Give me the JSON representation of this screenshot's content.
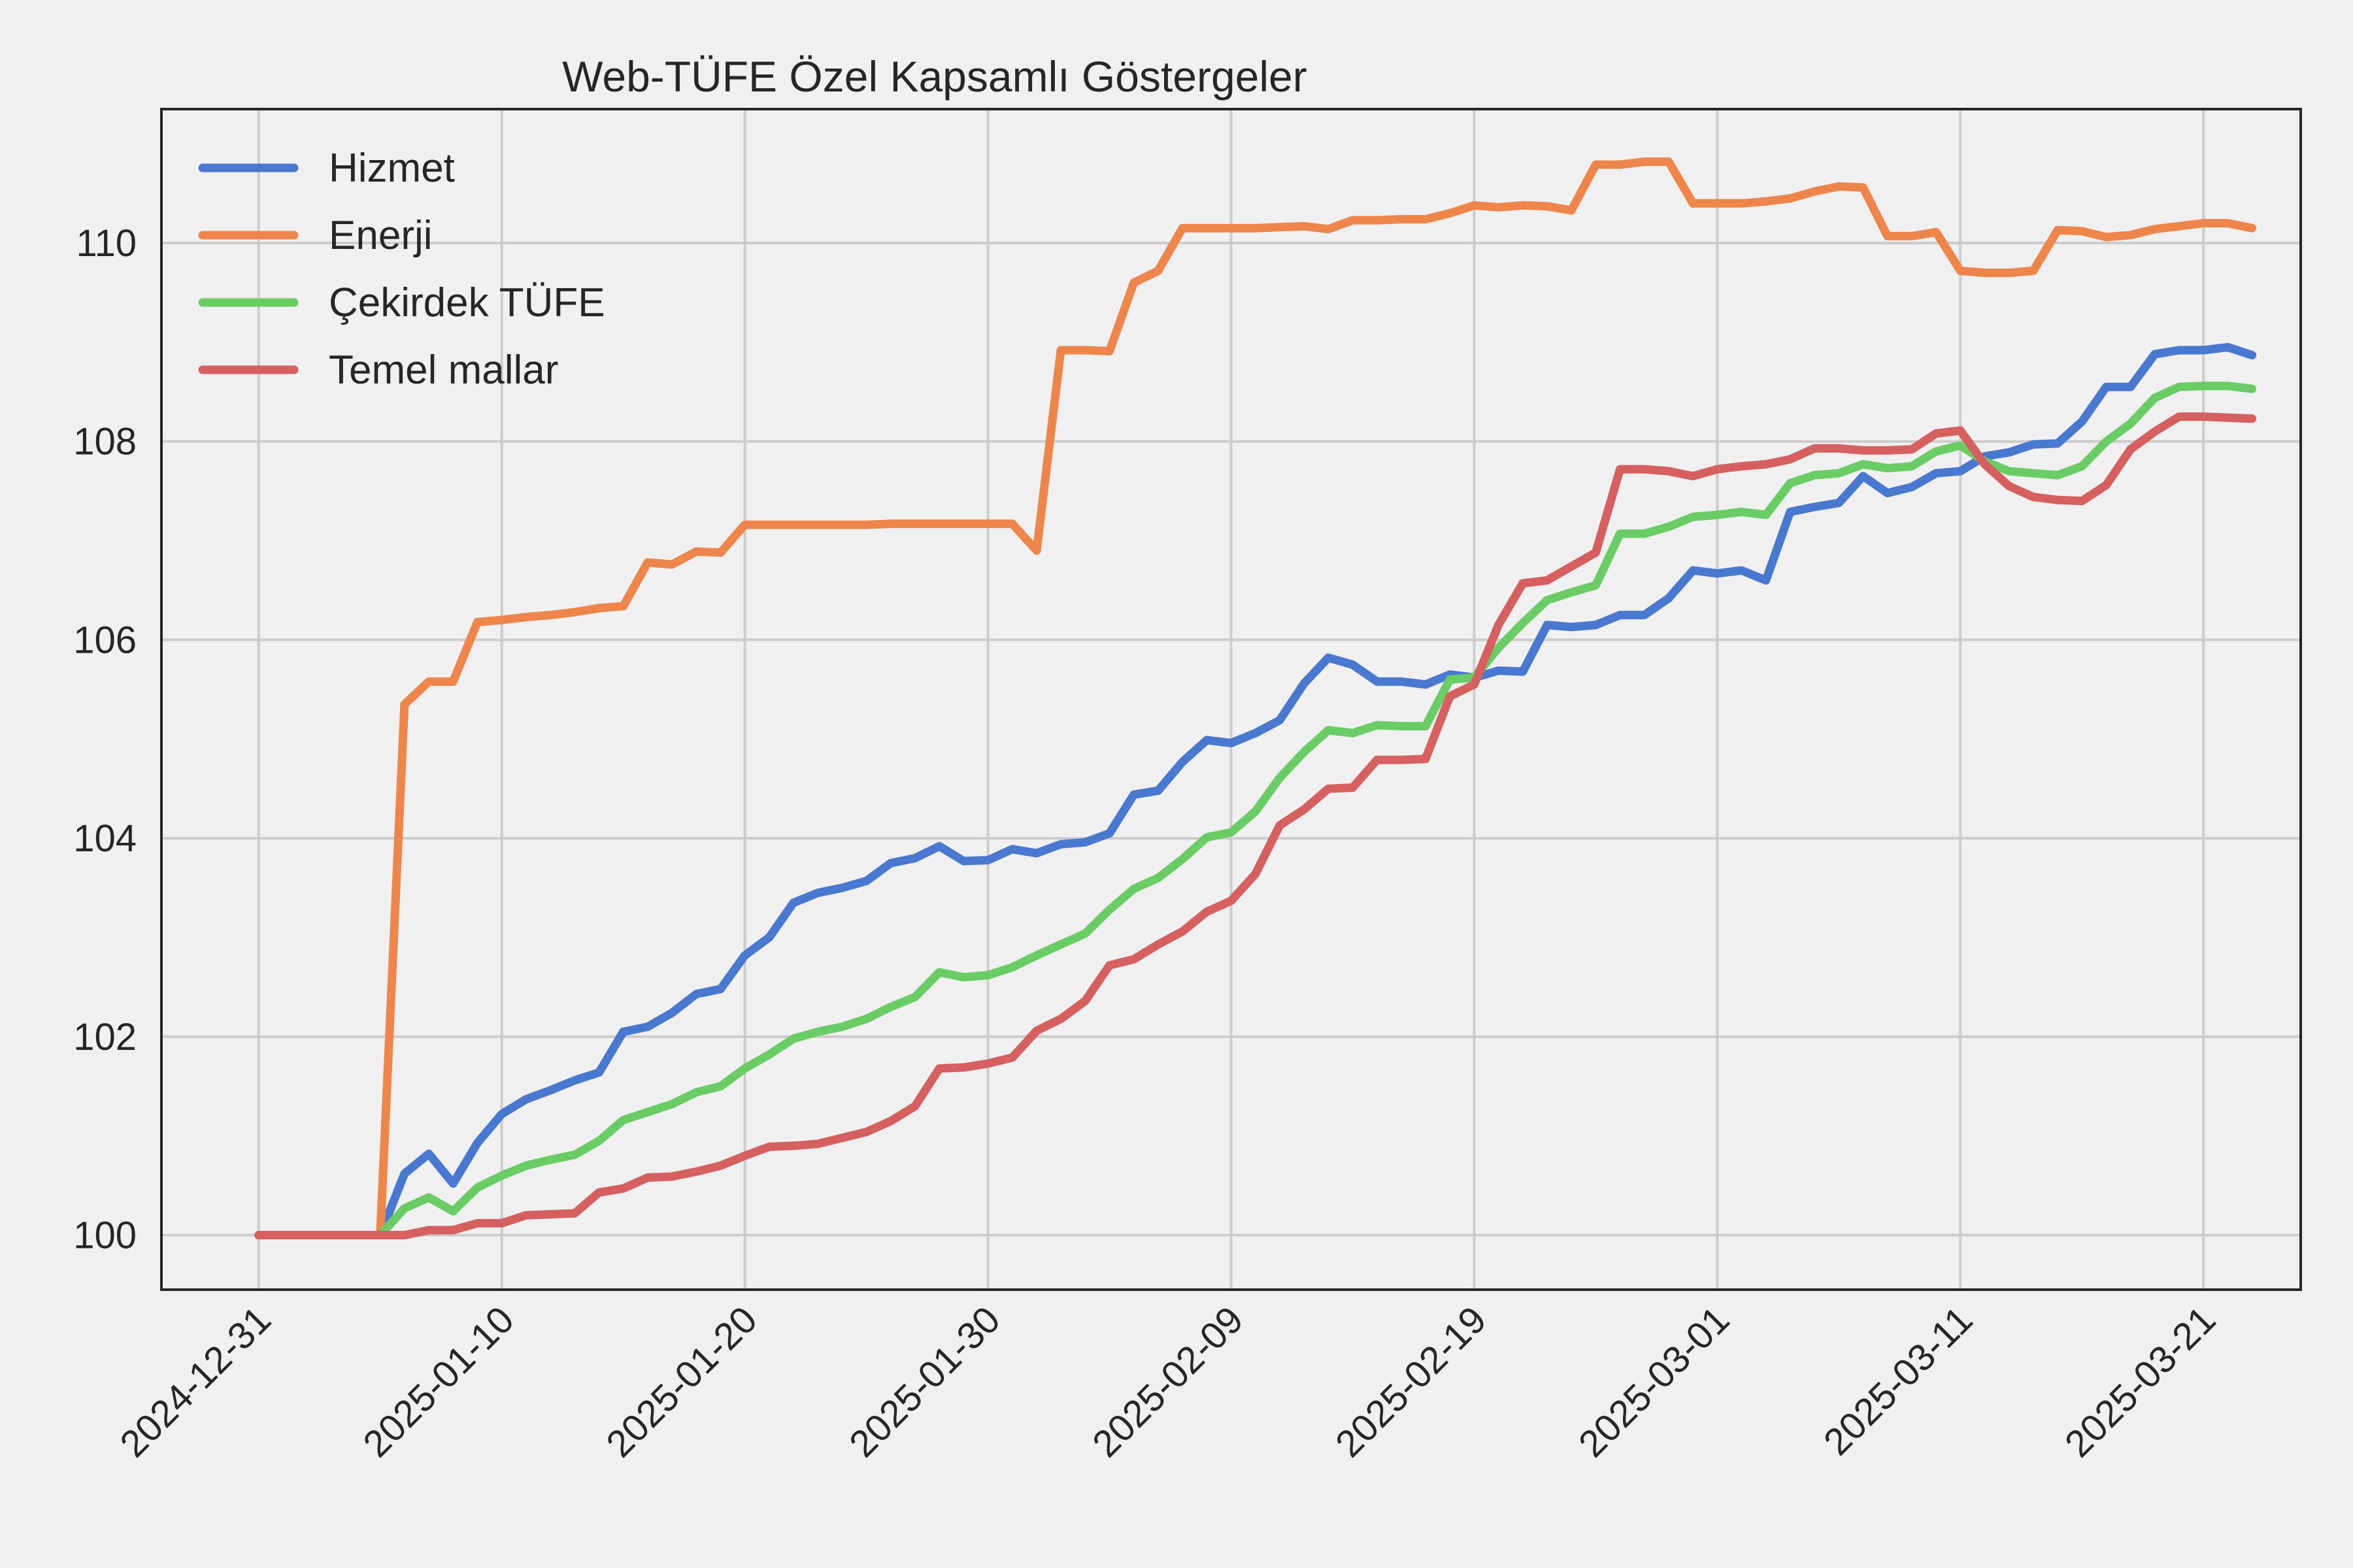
{
  "chart_data": {
    "type": "line",
    "title": "Web-TÜFE Özel Kapsamlı Göstergeler",
    "xlabel": "",
    "ylabel": "",
    "x_range": [
      "2024-12-27",
      "2025-03-25"
    ],
    "ylim": [
      99.45,
      111.35
    ],
    "grid": true,
    "legend_position": "top-left",
    "x_ticks": [
      "2024-12-31",
      "2025-01-10",
      "2025-01-20",
      "2025-01-30",
      "2025-02-09",
      "2025-02-19",
      "2025-03-01",
      "2025-03-11",
      "2025-03-21"
    ],
    "y_ticks": [
      "100",
      "102",
      "104",
      "106",
      "108",
      "110"
    ],
    "x": [
      "2024-12-31",
      "2025-01-01",
      "2025-01-02",
      "2025-01-03",
      "2025-01-04",
      "2025-01-05",
      "2025-01-06",
      "2025-01-07",
      "2025-01-08",
      "2025-01-09",
      "2025-01-10",
      "2025-01-11",
      "2025-01-12",
      "2025-01-13",
      "2025-01-14",
      "2025-01-15",
      "2025-01-16",
      "2025-01-17",
      "2025-01-18",
      "2025-01-19",
      "2025-01-20",
      "2025-01-21",
      "2025-01-22",
      "2025-01-23",
      "2025-01-24",
      "2025-01-25",
      "2025-01-26",
      "2025-01-27",
      "2025-01-28",
      "2025-01-29",
      "2025-01-30",
      "2025-01-31",
      "2025-02-01",
      "2025-02-02",
      "2025-02-03",
      "2025-02-04",
      "2025-02-05",
      "2025-02-06",
      "2025-02-07",
      "2025-02-08",
      "2025-02-09",
      "2025-02-10",
      "2025-02-11",
      "2025-02-12",
      "2025-02-13",
      "2025-02-14",
      "2025-02-15",
      "2025-02-16",
      "2025-02-17",
      "2025-02-18",
      "2025-02-19",
      "2025-02-20",
      "2025-02-21",
      "2025-02-22",
      "2025-02-23",
      "2025-02-24",
      "2025-02-25",
      "2025-02-26",
      "2025-02-27",
      "2025-02-28",
      "2025-03-01",
      "2025-03-02",
      "2025-03-03",
      "2025-03-04",
      "2025-03-05",
      "2025-03-06",
      "2025-03-07",
      "2025-03-08",
      "2025-03-09",
      "2025-03-10",
      "2025-03-11",
      "2025-03-12",
      "2025-03-13",
      "2025-03-14",
      "2025-03-15",
      "2025-03-16",
      "2025-03-17",
      "2025-03-18",
      "2025-03-19",
      "2025-03-20",
      "2025-03-21",
      "2025-03-22",
      "2025-03-23"
    ],
    "series": [
      {
        "name": "Hizmet",
        "color": "#4878d0",
        "values": [
          100.0,
          100.0,
          100.0,
          100.0,
          100.0,
          100.0,
          100.62,
          100.82,
          100.52,
          100.93,
          101.22,
          101.37,
          101.46,
          101.56,
          101.64,
          102.05,
          102.1,
          102.24,
          102.43,
          102.48,
          102.82,
          103.0,
          103.35,
          103.45,
          103.5,
          103.57,
          103.75,
          103.8,
          103.92,
          103.77,
          103.78,
          103.89,
          103.85,
          103.94,
          103.96,
          104.05,
          104.44,
          104.48,
          104.77,
          104.99,
          104.96,
          105.06,
          105.19,
          105.56,
          105.82,
          105.75,
          105.58,
          105.58,
          105.55,
          105.65,
          105.62,
          105.69,
          105.68,
          106.15,
          106.13,
          106.15,
          106.25,
          106.25,
          106.42,
          106.7,
          106.67,
          106.7,
          106.6,
          107.29,
          107.34,
          107.38,
          107.65,
          107.48,
          107.54,
          107.68,
          107.7,
          107.85,
          107.89,
          107.97,
          107.98,
          108.2,
          108.55,
          108.55,
          108.88,
          108.92,
          108.92,
          108.95,
          108.87
        ]
      },
      {
        "name": "Enerji",
        "color": "#ee854a",
        "values": [
          100.0,
          100.0,
          100.0,
          100.0,
          100.0,
          100.0,
          105.35,
          105.58,
          105.58,
          106.18,
          106.2,
          106.23,
          106.25,
          106.28,
          106.32,
          106.34,
          106.78,
          106.76,
          106.89,
          106.88,
          107.16,
          107.16,
          107.16,
          107.16,
          107.16,
          107.16,
          107.17,
          107.17,
          107.17,
          107.17,
          107.17,
          107.17,
          106.9,
          108.92,
          108.92,
          108.91,
          109.6,
          109.72,
          110.15,
          110.15,
          110.15,
          110.15,
          110.16,
          110.17,
          110.14,
          110.23,
          110.23,
          110.24,
          110.24,
          110.3,
          110.38,
          110.36,
          110.38,
          110.37,
          110.33,
          110.79,
          110.79,
          110.82,
          110.82,
          110.4,
          110.4,
          110.4,
          110.42,
          110.45,
          110.52,
          110.57,
          110.56,
          110.07,
          110.07,
          110.11,
          109.72,
          109.7,
          109.7,
          109.72,
          110.13,
          110.12,
          110.06,
          110.08,
          110.14,
          110.17,
          110.2,
          110.2,
          110.15
        ]
      },
      {
        "name": "Çekirdek TÜFE",
        "color": "#6acc64",
        "values": [
          100.0,
          100.0,
          100.0,
          100.0,
          100.0,
          100.0,
          100.27,
          100.38,
          100.24,
          100.48,
          100.6,
          100.7,
          100.76,
          100.81,
          100.95,
          101.16,
          101.24,
          101.32,
          101.44,
          101.5,
          101.68,
          101.82,
          101.98,
          102.05,
          102.1,
          102.18,
          102.3,
          102.4,
          102.65,
          102.6,
          102.62,
          102.7,
          102.82,
          102.93,
          103.04,
          103.28,
          103.49,
          103.6,
          103.79,
          104.01,
          104.06,
          104.27,
          104.61,
          104.87,
          105.09,
          105.06,
          105.14,
          105.13,
          105.13,
          105.6,
          105.62,
          105.92,
          106.17,
          106.4,
          106.48,
          106.55,
          107.07,
          107.07,
          107.14,
          107.24,
          107.26,
          107.29,
          107.26,
          107.58,
          107.66,
          107.68,
          107.77,
          107.73,
          107.75,
          107.9,
          107.96,
          107.8,
          107.7,
          107.68,
          107.66,
          107.75,
          108.0,
          108.18,
          108.44,
          108.55,
          108.56,
          108.56,
          108.53
        ]
      },
      {
        "name": "Temel mallar",
        "color": "#d65f5f",
        "values": [
          100.0,
          100.0,
          100.0,
          100.0,
          100.0,
          100.0,
          100.0,
          100.05,
          100.05,
          100.12,
          100.12,
          100.2,
          100.21,
          100.22,
          100.43,
          100.47,
          100.58,
          100.59,
          100.64,
          100.7,
          100.8,
          100.89,
          100.9,
          100.92,
          100.98,
          101.04,
          101.15,
          101.3,
          101.68,
          101.69,
          101.73,
          101.79,
          102.06,
          102.18,
          102.36,
          102.72,
          102.78,
          102.93,
          103.06,
          103.26,
          103.37,
          103.64,
          104.13,
          104.29,
          104.5,
          104.51,
          104.79,
          104.79,
          104.8,
          105.43,
          105.55,
          106.15,
          106.57,
          106.6,
          106.74,
          106.88,
          107.72,
          107.72,
          107.7,
          107.65,
          107.72,
          107.75,
          107.77,
          107.82,
          107.93,
          107.93,
          107.91,
          107.91,
          107.92,
          108.08,
          108.11,
          107.77,
          107.55,
          107.44,
          107.41,
          107.4,
          107.56,
          107.92,
          108.1,
          108.25,
          108.25,
          108.24,
          108.23
        ]
      }
    ]
  }
}
